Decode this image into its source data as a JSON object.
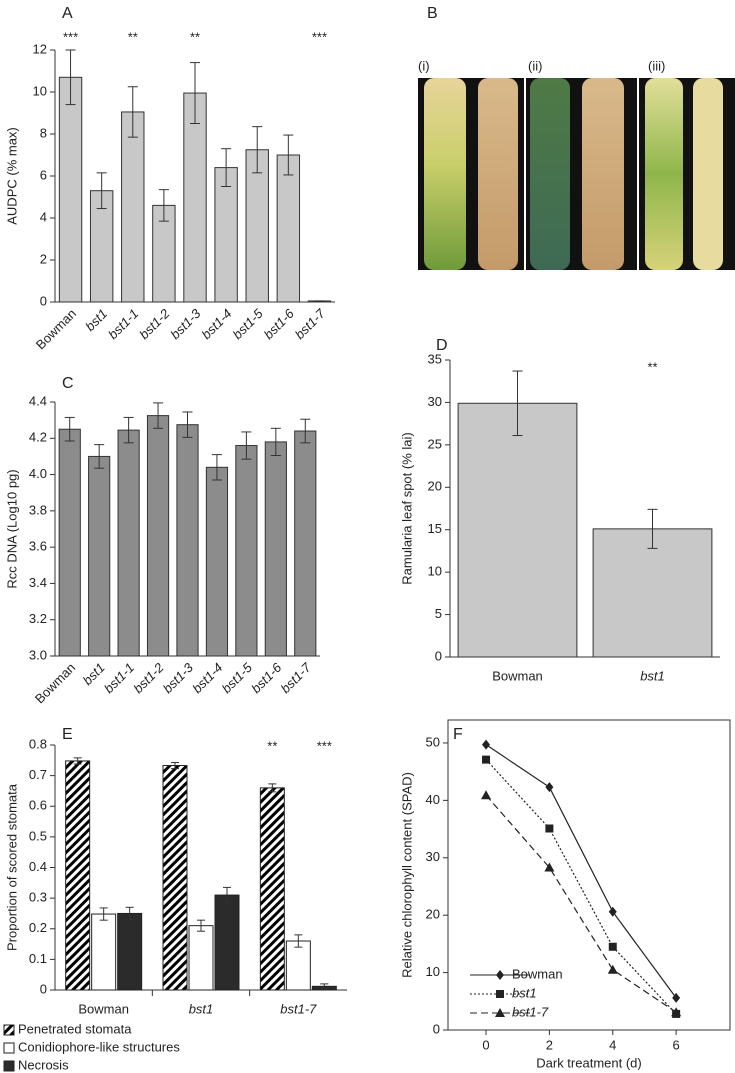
{
  "chart_data": [
    {
      "type": "bar",
      "panel": "A",
      "ylabel": "AUDPC (% max)",
      "categories": [
        "Bowman",
        "bst1",
        "bst1-1",
        "bst1-2",
        "bst1-3",
        "bst1-4",
        "bst1-5",
        "bst1-6",
        "bst1-7"
      ],
      "values": [
        10.7,
        5.3,
        9.05,
        4.6,
        9.95,
        6.4,
        7.25,
        7.0,
        0.05
      ],
      "errors": [
        1.3,
        0.85,
        1.2,
        0.75,
        1.45,
        0.9,
        1.1,
        0.95,
        0
      ],
      "significance": [
        "***",
        null,
        "**",
        null,
        "**",
        null,
        null,
        null,
        "***"
      ],
      "color": "#c8c8c8",
      "ylim": [
        0,
        12
      ],
      "yticks": [
        0,
        2,
        4,
        6,
        8,
        10,
        12
      ]
    },
    {
      "type": "bar",
      "panel": "C",
      "ylabel": "Rcc DNA (Log10 pg)",
      "categories": [
        "Bowman",
        "bst1",
        "bst1-1",
        "bst1-2",
        "bst1-3",
        "bst1-4",
        "bst1-5",
        "bst1-6",
        "bst1-7"
      ],
      "values": [
        4.25,
        4.1,
        4.245,
        4.325,
        4.275,
        4.04,
        4.16,
        4.18,
        4.24
      ],
      "errors": [
        0.065,
        0.065,
        0.07,
        0.07,
        0.07,
        0.07,
        0.075,
        0.075,
        0.065
      ],
      "color": "#8c8c8c",
      "ylim": [
        3.0,
        4.4
      ],
      "yticks": [
        {
          "value": 3,
          "label": "3.0"
        },
        3.2,
        3.4,
        3.6,
        3.8,
        {
          "value": 4,
          "label": "4.0"
        },
        4.2,
        4.4
      ]
    },
    {
      "type": "bar",
      "panel": "D",
      "ylabel": "Ramularia leaf spot (% lai)",
      "categories": [
        "Bowman",
        "bst1"
      ],
      "values": [
        29.9,
        15.1
      ],
      "errors": [
        3.8,
        2.3
      ],
      "significance": [
        null,
        "**"
      ],
      "color": "#c8c8c8",
      "ylim": [
        0,
        35
      ],
      "yticks": [
        0,
        5,
        10,
        15,
        20,
        25,
        30,
        35
      ]
    },
    {
      "type": "bar",
      "panel": "E",
      "ylabel": "Proportion of scored stomata",
      "categories": [
        "Bowman",
        "bst1",
        "bst1-7"
      ],
      "series": [
        {
          "name": "Penetrated stomata",
          "color": "#000000",
          "pattern": "hatch",
          "values": [
            0.748,
            0.733,
            0.66
          ],
          "errors": [
            0.01,
            0.01,
            0.013
          ],
          "significance": [
            null,
            null,
            "**"
          ]
        },
        {
          "name": "Conidiophore-like structures",
          "color": "#ffffff",
          "values": [
            0.248,
            0.21,
            0.16
          ],
          "errors": [
            0.02,
            0.018,
            0.02
          ]
        },
        {
          "name": "Necrosis",
          "color": "#2b2b2b",
          "values": [
            0.25,
            0.31,
            0.012
          ],
          "errors": [
            0.02,
            0.025,
            0.008
          ],
          "significance": [
            null,
            null,
            "***"
          ]
        }
      ],
      "ylim": [
        0,
        0.8
      ],
      "yticks": [
        0,
        0.1,
        0.2,
        0.3,
        0.4,
        0.5,
        0.6,
        0.7,
        0.8
      ]
    },
    {
      "type": "line",
      "panel": "F",
      "xlabel": "Dark treatment (d)",
      "ylabel": "Relative chlorophyll content (SPAD)",
      "x": [
        0,
        2,
        4,
        6
      ],
      "series": [
        {
          "name": "Bowman",
          "color": "#222222",
          "marker": "diamond",
          "dash": "solid",
          "values": [
            49.7,
            42.3,
            20.6,
            5.6
          ]
        },
        {
          "name": "bst1",
          "color": "#222222",
          "marker": "square",
          "dash": "dotted",
          "values": [
            47.1,
            35.1,
            14.5,
            2.8
          ]
        },
        {
          "name": "bst1-7",
          "color": "#222222",
          "marker": "triangle",
          "dash": "dashed",
          "values": [
            40.9,
            28.3,
            10.5,
            3.1
          ]
        }
      ],
      "xlim": [
        -1.2,
        7.7
      ],
      "xticks": [
        0,
        2,
        4,
        6
      ],
      "ylim": [
        0,
        54
      ],
      "yticks": [
        0,
        10,
        20,
        30,
        40,
        50
      ]
    }
  ],
  "image_panel": {
    "panel": "B",
    "captions": [
      "(i)",
      "(ii)",
      "(iii)"
    ]
  }
}
